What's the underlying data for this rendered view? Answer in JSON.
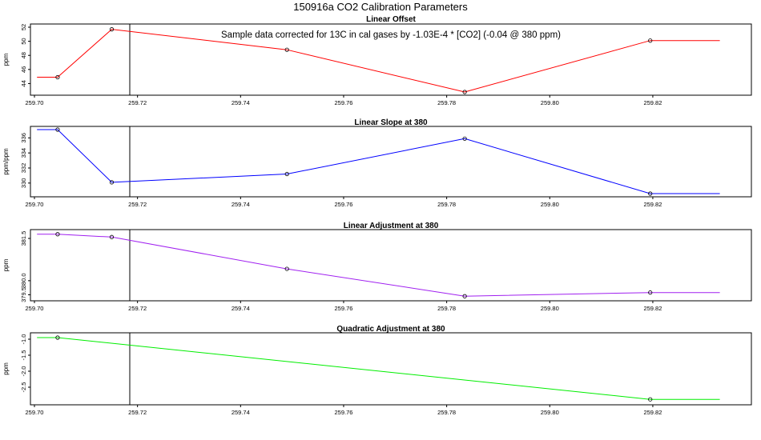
{
  "title": "150916a   CO2 Calibration Parameters",
  "annotation": "Sample data corrected for 13C in cal gases by -1.03E-4 * [CO2] (-0.04 @ 380 ppm)",
  "chart_data": [
    {
      "type": "line",
      "title": "Linear Offset",
      "ylabel": "ppm",
      "color": "#ff0000",
      "xlim": [
        259.7,
        259.834
      ],
      "ylim": [
        42.8,
        52.0
      ],
      "xticks": [
        "259.70",
        "259.72",
        "259.74",
        "259.76",
        "259.78",
        "259.80",
        "259.82"
      ],
      "yticks": [
        "44",
        "46",
        "48",
        "50",
        "52"
      ],
      "ytick_values": [
        44,
        46,
        48,
        50,
        52
      ],
      "vline_x": 259.7185,
      "x": [
        259.7005,
        259.7045,
        259.715,
        259.749,
        259.7835,
        259.8195,
        259.833
      ],
      "y": [
        44.9,
        44.9,
        51.7,
        48.8,
        42.8,
        50.1,
        50.1
      ],
      "markers": [
        1,
        2,
        3,
        4,
        5
      ]
    },
    {
      "type": "line",
      "title": "Linear Slope at 380",
      "ylabel": "ppm/ppm",
      "color": "#0000ff",
      "xlim": [
        259.7,
        259.834
      ],
      "ylim": [
        328.6,
        337.1
      ],
      "xticks": [
        "259.70",
        "259.72",
        "259.74",
        "259.76",
        "259.78",
        "259.80",
        "259.82"
      ],
      "yticks": [
        "330",
        "332",
        "334",
        "336"
      ],
      "ytick_values": [
        330,
        332,
        334,
        336
      ],
      "vline_x": 259.7185,
      "x": [
        259.7005,
        259.7045,
        259.715,
        259.749,
        259.7835,
        259.8195,
        259.833
      ],
      "y": [
        337.1,
        337.1,
        330.1,
        331.2,
        335.9,
        328.6,
        328.6
      ],
      "markers": [
        1,
        2,
        3,
        4,
        5
      ]
    },
    {
      "type": "line",
      "title": "Linear Adjustment at 380",
      "ylabel": "ppm",
      "color": "#a020f0",
      "xlim": [
        259.7,
        259.834
      ],
      "ylim": [
        379.4,
        381.7
      ],
      "xticks": [
        "259.70",
        "259.72",
        "259.74",
        "259.76",
        "259.78",
        "259.80",
        "259.82"
      ],
      "yticks": [
        "379.5",
        "380.0",
        "381.5"
      ],
      "ytick_values": [
        379.5,
        380.0,
        381.5
      ],
      "vline_x": 259.7185,
      "x": [
        259.7005,
        259.7045,
        259.715,
        259.749,
        259.7835,
        259.8195,
        259.833
      ],
      "y": [
        381.65,
        381.65,
        381.55,
        380.42,
        379.45,
        379.58,
        379.58
      ],
      "markers": [
        1,
        2,
        3,
        4,
        5
      ]
    },
    {
      "type": "line",
      "title": "Quadratic Adjustment at 380",
      "ylabel": "ppm",
      "color": "#00ee00",
      "xlim": [
        259.7,
        259.834
      ],
      "ylim": [
        -2.95,
        -0.9
      ],
      "xticks": [
        "259.70",
        "259.72",
        "259.74",
        "259.76",
        "259.78",
        "259.80",
        "259.82"
      ],
      "yticks": [
        "-1.0",
        "-1.5",
        "-2.0",
        "-2.5"
      ],
      "ytick_values": [
        -1.0,
        -1.5,
        -2.0,
        -2.5
      ],
      "vline_x": 259.7185,
      "x": [
        259.7005,
        259.7045,
        259.8195,
        259.833
      ],
      "y": [
        -0.95,
        -0.95,
        -2.88,
        -2.88
      ],
      "markers": [
        1,
        2
      ]
    }
  ]
}
